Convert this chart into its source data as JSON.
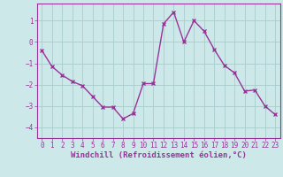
{
  "x": [
    0,
    1,
    2,
    3,
    4,
    5,
    6,
    7,
    8,
    9,
    10,
    11,
    12,
    13,
    14,
    15,
    16,
    17,
    18,
    19,
    20,
    21,
    22,
    23
  ],
  "y": [
    -0.4,
    -1.15,
    -1.55,
    -1.85,
    -2.05,
    -2.55,
    -3.05,
    -3.05,
    -3.6,
    -3.35,
    -1.95,
    -1.95,
    0.85,
    1.4,
    0.0,
    1.0,
    0.5,
    -0.35,
    -1.1,
    -1.45,
    -2.3,
    -2.25,
    -3.0,
    -3.4
  ],
  "line_color": "#993399",
  "marker": "x",
  "marker_size": 3,
  "bg_color": "#cce8e8",
  "grid_color": "#aacccc",
  "xlabel": "Windchill (Refroidissement éolien,°C)",
  "ylim": [
    -4.5,
    1.8
  ],
  "xlim": [
    -0.5,
    23.5
  ],
  "yticks": [
    -4,
    -3,
    -2,
    -1,
    0,
    1
  ],
  "xticks": [
    0,
    1,
    2,
    3,
    4,
    5,
    6,
    7,
    8,
    9,
    10,
    11,
    12,
    13,
    14,
    15,
    16,
    17,
    18,
    19,
    20,
    21,
    22,
    23
  ],
  "tick_fontsize": 5.5,
  "label_fontsize": 6.5,
  "line_width": 1.0
}
